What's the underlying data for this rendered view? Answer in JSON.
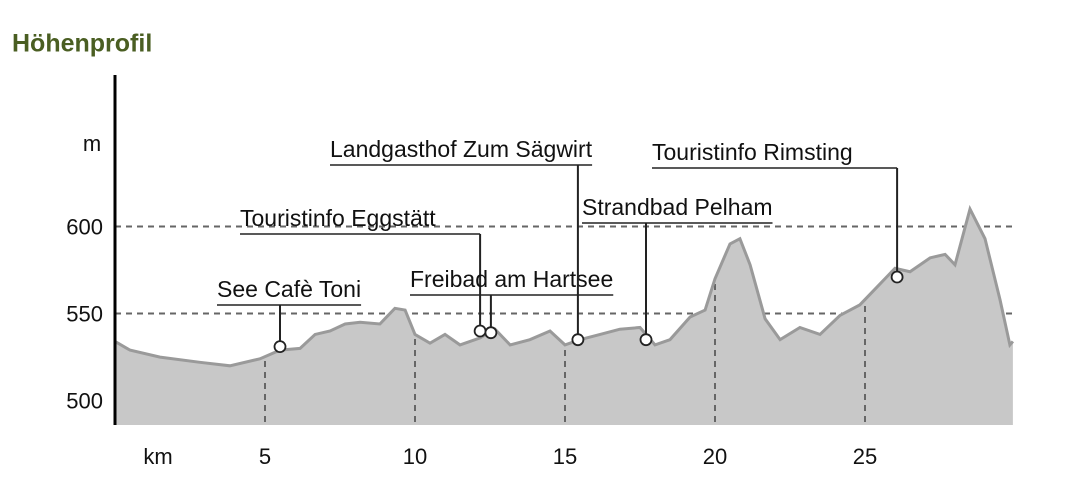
{
  "chart_data": {
    "type": "area",
    "title": "Höhenprofil",
    "x_label": "km",
    "y_label": "m",
    "x": [
      0,
      0.5,
      1.5,
      2.83,
      3.83,
      4.83,
      5.5,
      6.17,
      6.67,
      7.17,
      7.67,
      8.17,
      8.83,
      9.33,
      9.67,
      10,
      10.5,
      11,
      11.5,
      12.17,
      12.67,
      13.17,
      13.83,
      14.5,
      15,
      15.5,
      16.17,
      16.83,
      17.5,
      18,
      18.5,
      19.17,
      19.67,
      20,
      20.5,
      20.83,
      21.17,
      21.67,
      22.17,
      22.83,
      23.5,
      24.17,
      24.83,
      25.5,
      26,
      26.5,
      27.17,
      27.67,
      28,
      28.5,
      29,
      29.5,
      29.83,
      29.93
    ],
    "values": [
      534,
      529,
      525,
      522,
      520,
      524,
      529,
      530,
      538,
      540,
      544,
      545,
      544,
      553,
      552,
      538,
      533,
      538,
      532,
      536,
      541,
      532,
      535,
      540,
      532,
      535,
      538,
      541,
      542,
      532,
      535,
      548,
      552,
      570,
      590,
      593,
      578,
      547,
      535,
      542,
      538,
      549,
      555,
      567,
      576,
      574,
      582,
      584,
      578,
      610,
      593,
      558,
      532,
      534
    ],
    "color": "#c8c8c8",
    "line_color": "#9a9a9a",
    "xlim": [
      0,
      30
    ],
    "xticks": [
      5,
      10,
      15,
      20,
      25
    ],
    "ylim": [
      486,
      687
    ],
    "yticks": [
      500,
      550,
      600
    ],
    "grid": true,
    "annotations": [
      {
        "label": "See Cafè Toni",
        "km": 5.5,
        "elevation": 531
      },
      {
        "label": "Touristinfo Eggstätt",
        "km": 12.17,
        "elevation": 540
      },
      {
        "label": "Freibad am Hartsee",
        "km": 12.53,
        "elevation": 539
      },
      {
        "label": "Landgasthof Zum Sägwirt",
        "km": 15.43,
        "elevation": 535
      },
      {
        "label": "Strandbad Pelham",
        "km": 17.7,
        "elevation": 535
      },
      {
        "label": "Touristinfo Rimsting",
        "km": 26.07,
        "elevation": 571
      }
    ]
  }
}
